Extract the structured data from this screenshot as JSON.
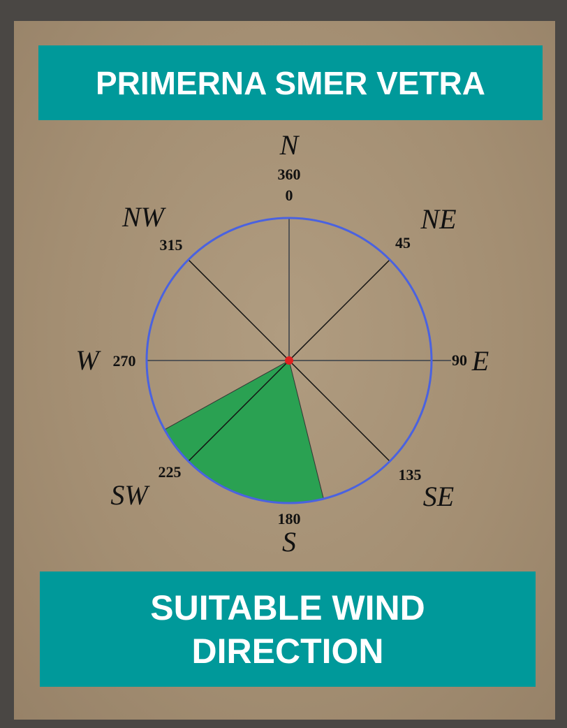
{
  "header": {
    "title": "PRIMERNA SMER VETRA"
  },
  "compass": {
    "directions": [
      "N",
      "NE",
      "E",
      "SE",
      "S",
      "SW",
      "W",
      "NW"
    ],
    "degree_labels": [
      "360",
      "0",
      "45",
      "90",
      "135",
      "180",
      "225",
      "270",
      "315"
    ],
    "sector": {
      "from": 166,
      "to": 241,
      "color": "#2aa152"
    }
  },
  "footer": {
    "title": "SUITABLE WIND DIRECTION"
  }
}
